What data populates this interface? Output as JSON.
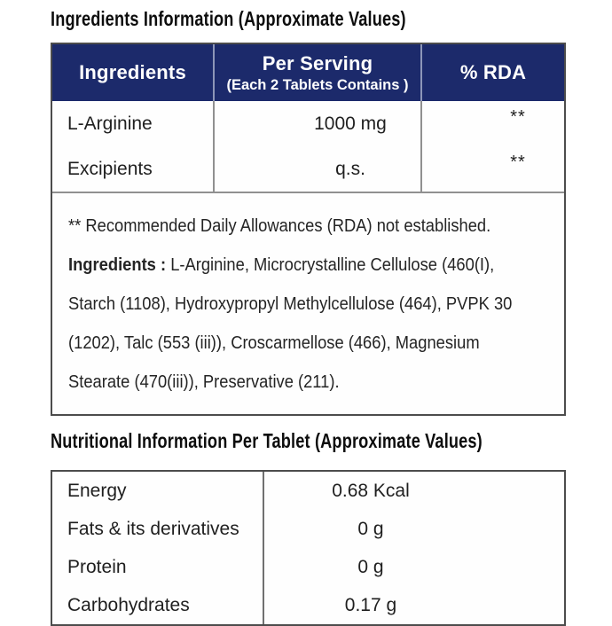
{
  "colors": {
    "header_bg": "#1c2a6b",
    "header_text": "#ffffff",
    "body_text": "#1f1f1f",
    "border_outer": "#4c4c4c",
    "border_inner": "#909090"
  },
  "ingredients_section": {
    "title": "Ingredients Information (Approximate Values)",
    "table": {
      "headers": {
        "col1": "Ingredients",
        "col2_line1": "Per Serving",
        "col2_line2": "(Each 2 Tablets Contains )",
        "col3": "% RDA"
      },
      "rows": [
        {
          "name": "L-Arginine",
          "per_serving": "1000 mg",
          "rda": "**"
        },
        {
          "name": "Excipients",
          "per_serving": "q.s.",
          "rda": "**"
        }
      ]
    },
    "note": "** Recommended Daily Allowances (RDA) not established.",
    "ingredients_label": "Ingredients :",
    "ingredients_list": " L-Arginine, Microcrystalline Cellulose (460(I), Starch (1108), Hydroxypropyl Methylcellulose (464), PVPK 30 (1202), Talc (553 (iii)), Croscarmellose (466), Magnesium Stearate (470(iii)), Preservative (211)."
  },
  "nutrition_section": {
    "title": "Nutritional Information Per Tablet (Approximate Values)",
    "rows": [
      {
        "label": "Energy",
        "value": "0.68 Kcal"
      },
      {
        "label": "Fats & its derivatives",
        "value": "0 g"
      },
      {
        "label": "Protein",
        "value": "0 g"
      },
      {
        "label": "Carbohydrates",
        "value": "0.17 g"
      }
    ]
  }
}
